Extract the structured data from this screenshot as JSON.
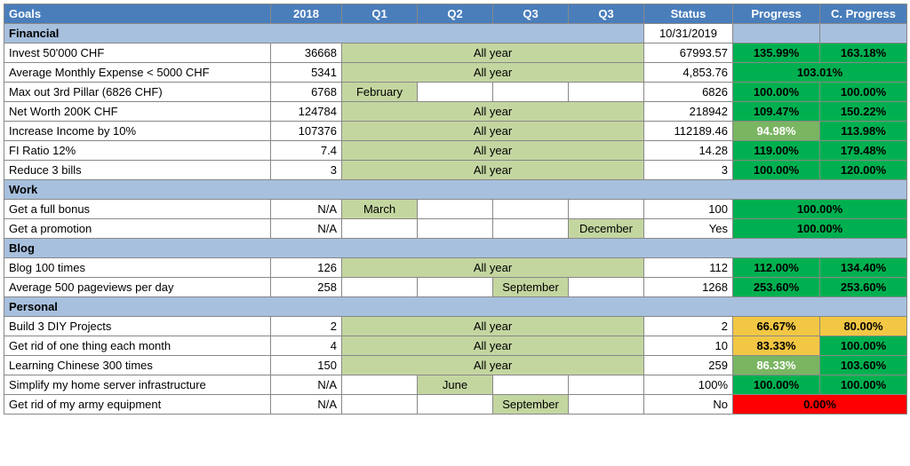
{
  "columns": {
    "goal": "Goals",
    "y2018": "2018",
    "q1": "Q1",
    "q2": "Q2",
    "q3a": "Q3",
    "q3b": "Q3",
    "status": "Status",
    "progress": "Progress",
    "cprogress": "C. Progress"
  },
  "sections": {
    "financial": "Financial",
    "work": "Work",
    "blog": "Blog",
    "personal": "Personal"
  },
  "financial_date": "10/31/2019",
  "text": {
    "allyear": "All year",
    "feb": "February",
    "mar": "March",
    "jun": "June",
    "sep": "September",
    "dec": "December"
  },
  "rows": {
    "invest": {
      "goal": "Invest 50'000 CHF",
      "y2018": "36668",
      "status": "67993.57",
      "prog": "135.99%",
      "cprog": "163.18%"
    },
    "expense": {
      "goal": "Average Monthly Expense < 5000 CHF",
      "y2018": "5341",
      "status": "4,853.76",
      "prog": "103.01%"
    },
    "pillar": {
      "goal": "Max out 3rd Pillar (6826 CHF)",
      "y2018": "6768",
      "status": "6826",
      "prog": "100.00%",
      "cprog": "100.00%"
    },
    "networth": {
      "goal": "Net Worth 200K CHF",
      "y2018": "124784",
      "status": "218942",
      "prog": "109.47%",
      "cprog": "150.22%"
    },
    "income": {
      "goal": "Increase Income by 10%",
      "y2018": "107376",
      "status": "112189.46",
      "prog": "94.98%",
      "cprog": "113.98%"
    },
    "firatio": {
      "goal": "FI Ratio 12%",
      "y2018": "7.4",
      "status": "14.28",
      "prog": "119.00%",
      "cprog": "179.48%"
    },
    "bills": {
      "goal": "Reduce 3 bills",
      "y2018": "3",
      "status": "3",
      "prog": "100.00%",
      "cprog": "120.00%"
    },
    "bonus": {
      "goal": "Get a full bonus",
      "y2018": "N/A",
      "status": "100",
      "prog": "100.00%"
    },
    "promo": {
      "goal": "Get a promotion",
      "y2018": "N/A",
      "status": "Yes",
      "prog": "100.00%"
    },
    "blog100": {
      "goal": "Blog 100 times",
      "y2018": "126",
      "status": "112",
      "prog": "112.00%",
      "cprog": "134.40%"
    },
    "pv500": {
      "goal": "Average 500 pageviews per day",
      "y2018": "258",
      "status": "1268",
      "prog": "253.60%",
      "cprog": "253.60%"
    },
    "diy": {
      "goal": "Build 3 DIY Projects",
      "y2018": "2",
      "status": "2",
      "prog": "66.67%",
      "cprog": "80.00%"
    },
    "getrid": {
      "goal": "Get rid of one thing each month",
      "y2018": "4",
      "status": "10",
      "prog": "83.33%",
      "cprog": "100.00%"
    },
    "chinese": {
      "goal": "Learning Chinese 300 times",
      "y2018": "150",
      "status": "259",
      "prog": "86.33%",
      "cprog": "103.60%"
    },
    "server": {
      "goal": "Simplify my home server infrastructure",
      "y2018": "N/A",
      "status": "100%",
      "prog": "100.00%",
      "cprog": "100.00%"
    },
    "army": {
      "goal": "Get rid of my army equipment",
      "y2018": "N/A",
      "status": "No",
      "prog": "0.00%"
    }
  },
  "colors": {
    "header": "#4a7ebb",
    "section": "#a7c0de",
    "lightgreen": "#c4d6a0",
    "green": "#00b050",
    "midgreen": "#7ab562",
    "yellow": "#f2c744",
    "red": "#ff0000",
    "border": "#888888"
  }
}
